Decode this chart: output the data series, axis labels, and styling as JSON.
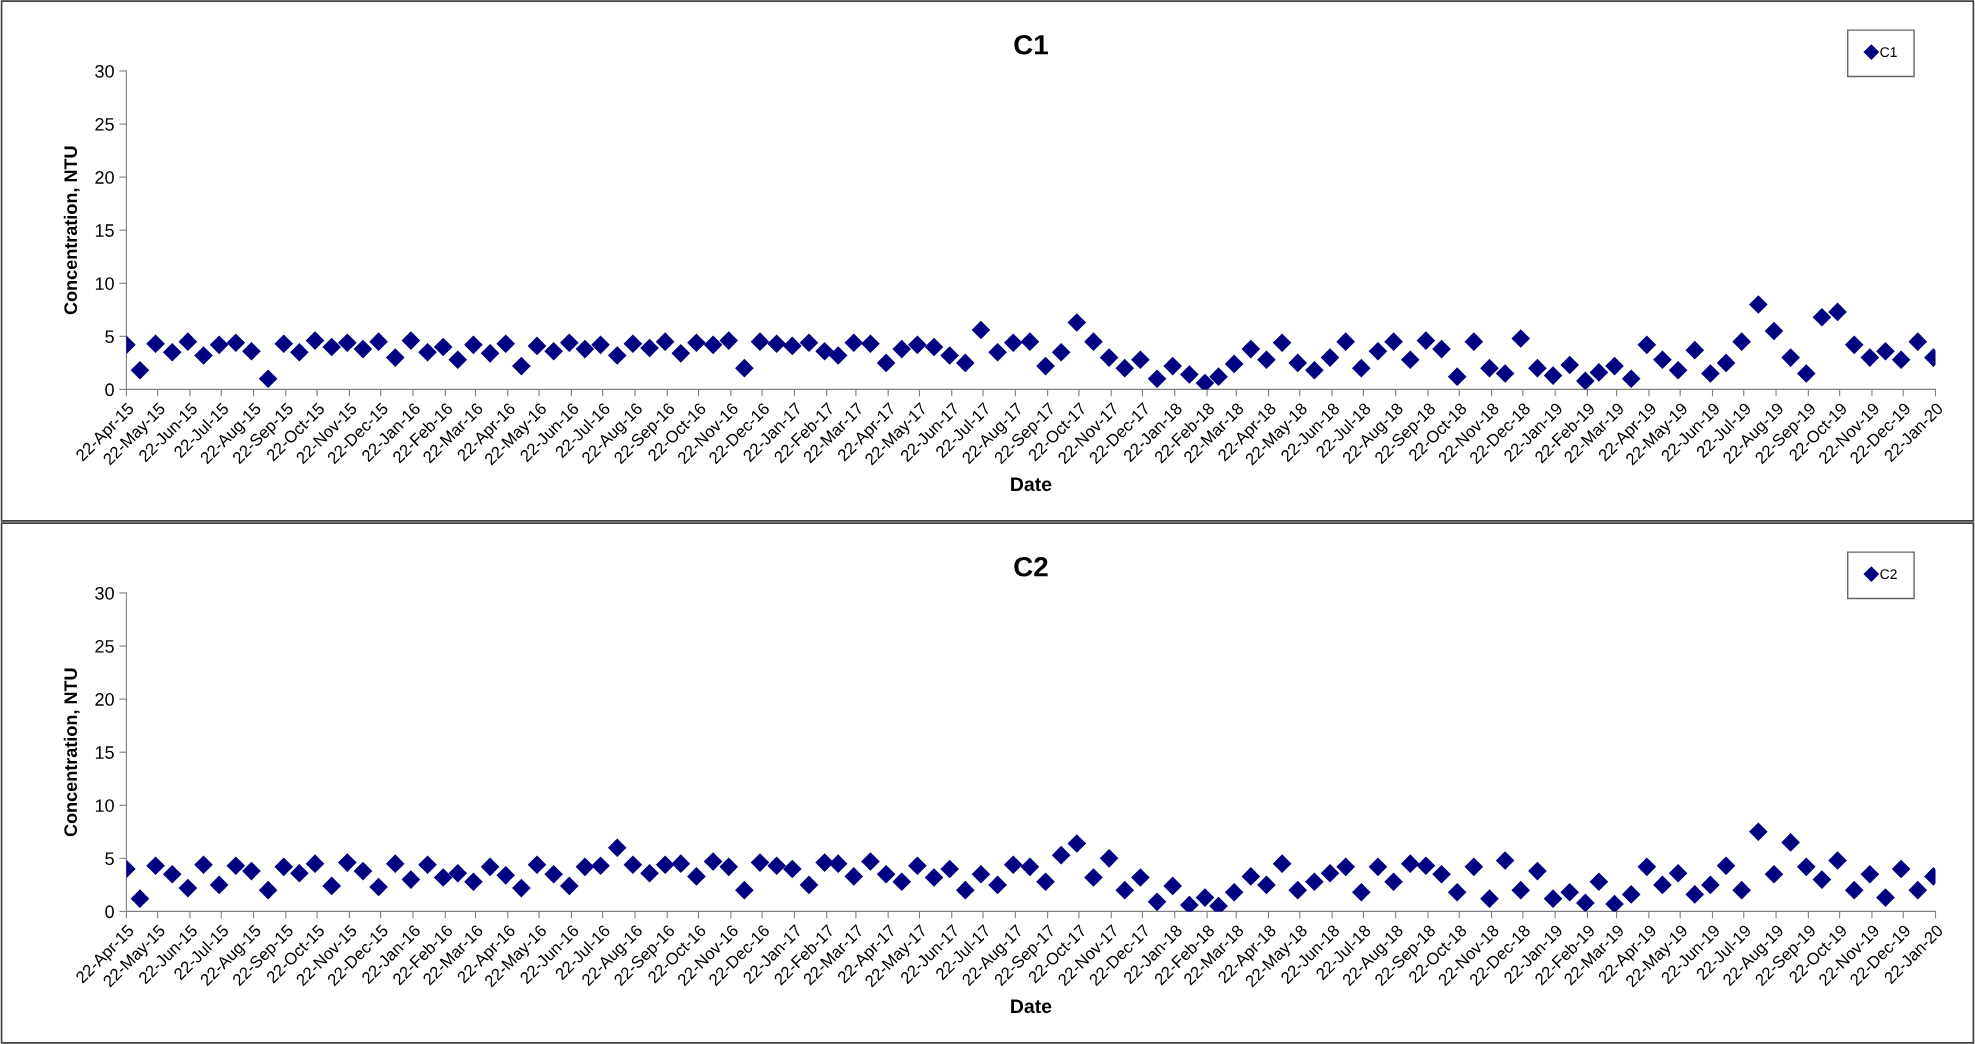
{
  "chart_data": [
    {
      "type": "scatter",
      "title": "C1",
      "xlabel": "Date",
      "ylabel": "Concentration, NTU",
      "marker": "diamond",
      "legend": "top right",
      "grid": false,
      "ylim": [
        0,
        30
      ],
      "yticks": [
        0,
        5,
        10,
        15,
        20,
        25,
        30
      ],
      "xlim": [
        "2015-04-22",
        "2020-01-22"
      ],
      "xticks": [
        {
          "value": "2015-04-22",
          "label": "22-Apr-15"
        },
        {
          "value": "2015-05-22",
          "label": "22-May-15"
        },
        {
          "value": "2015-06-22",
          "label": "22-Jun-15"
        },
        {
          "value": "2015-07-22",
          "label": "22-Jul-15"
        },
        {
          "value": "2015-08-22",
          "label": "22-Aug-15"
        },
        {
          "value": "2015-09-22",
          "label": "22-Sep-15"
        },
        {
          "value": "2015-10-22",
          "label": "22-Oct-15"
        },
        {
          "value": "2015-11-22",
          "label": "22-Nov-15"
        },
        {
          "value": "2015-12-22",
          "label": "22-Dec-15"
        },
        {
          "value": "2016-01-22",
          "label": "22-Jan-16"
        },
        {
          "value": "2016-02-22",
          "label": "22-Feb-16"
        },
        {
          "value": "2016-03-22",
          "label": "22-Mar-16"
        },
        {
          "value": "2016-04-22",
          "label": "22-Apr-16"
        },
        {
          "value": "2016-05-22",
          "label": "22-May-16"
        },
        {
          "value": "2016-06-22",
          "label": "22-Jun-16"
        },
        {
          "value": "2016-07-22",
          "label": "22-Jul-16"
        },
        {
          "value": "2016-08-22",
          "label": "22-Aug-16"
        },
        {
          "value": "2016-09-22",
          "label": "22-Sep-16"
        },
        {
          "value": "2016-10-22",
          "label": "22-Oct-16"
        },
        {
          "value": "2016-11-22",
          "label": "22-Nov-16"
        },
        {
          "value": "2016-12-22",
          "label": "22-Dec-16"
        },
        {
          "value": "2017-01-22",
          "label": "22-Jan-17"
        },
        {
          "value": "2017-02-22",
          "label": "22-Feb-17"
        },
        {
          "value": "2017-03-22",
          "label": "22-Mar-17"
        },
        {
          "value": "2017-04-22",
          "label": "22-Apr-17"
        },
        {
          "value": "2017-05-22",
          "label": "22-May-17"
        },
        {
          "value": "2017-06-22",
          "label": "22-Jun-17"
        },
        {
          "value": "2017-07-22",
          "label": "22-Jul-17"
        },
        {
          "value": "2017-08-22",
          "label": "22-Aug-17"
        },
        {
          "value": "2017-09-22",
          "label": "22-Sep-17"
        },
        {
          "value": "2017-10-22",
          "label": "22-Oct-17"
        },
        {
          "value": "2017-11-22",
          "label": "22-Nov-17"
        },
        {
          "value": "2017-12-22",
          "label": "22-Dec-17"
        },
        {
          "value": "2018-01-22",
          "label": "22-Jan-18"
        },
        {
          "value": "2018-02-22",
          "label": "22-Feb-18"
        },
        {
          "value": "2018-03-22",
          "label": "22-Mar-18"
        },
        {
          "value": "2018-04-22",
          "label": "22-Apr-18"
        },
        {
          "value": "2018-05-22",
          "label": "22-May-18"
        },
        {
          "value": "2018-06-22",
          "label": "22-Jun-18"
        },
        {
          "value": "2018-07-22",
          "label": "22-Jul-18"
        },
        {
          "value": "2018-08-22",
          "label": "22-Aug-18"
        },
        {
          "value": "2018-09-22",
          "label": "22-Sep-18"
        },
        {
          "value": "2018-10-22",
          "label": "22-Oct-18"
        },
        {
          "value": "2018-11-22",
          "label": "22-Nov-18"
        },
        {
          "value": "2018-12-22",
          "label": "22-Dec-18"
        },
        {
          "value": "2019-01-22",
          "label": "22-Jan-19"
        },
        {
          "value": "2019-02-22",
          "label": "22-Feb-19"
        },
        {
          "value": "2019-03-22",
          "label": "22-Mar-19"
        },
        {
          "value": "2019-04-22",
          "label": "22-Apr-19"
        },
        {
          "value": "2019-05-22",
          "label": "22-May-19"
        },
        {
          "value": "2019-06-22",
          "label": "22-Jun-19"
        },
        {
          "value": "2019-07-22",
          "label": "22-Jul-19"
        },
        {
          "value": "2019-08-22",
          "label": "22-Aug-19"
        },
        {
          "value": "2019-09-22",
          "label": "22-Sep-19"
        },
        {
          "value": "2019-10-22",
          "label": "22-Oct-19"
        },
        {
          "value": "2019-11-22",
          "label": "22-Nov-19"
        },
        {
          "value": "2019-12-22",
          "label": "22-Dec-19"
        },
        {
          "value": "2020-01-22",
          "label": "22-Jan-20"
        }
      ],
      "series": [
        {
          "name": "C1",
          "color": "#000080",
          "x": [
            "2015-04-22",
            "2015-05-05",
            "2015-05-20",
            "2015-06-05",
            "2015-06-20",
            "2015-07-05",
            "2015-07-20",
            "2015-08-05",
            "2015-08-20",
            "2015-09-05",
            "2015-09-20",
            "2015-10-05",
            "2015-10-20",
            "2015-11-05",
            "2015-11-20",
            "2015-12-05",
            "2015-12-20",
            "2016-01-05",
            "2016-01-20",
            "2016-02-05",
            "2016-02-20",
            "2016-03-05",
            "2016-03-20",
            "2016-04-05",
            "2016-04-20",
            "2016-05-05",
            "2016-05-20",
            "2016-06-05",
            "2016-06-20",
            "2016-07-05",
            "2016-07-20",
            "2016-08-05",
            "2016-08-20",
            "2016-09-05",
            "2016-09-20",
            "2016-10-05",
            "2016-10-20",
            "2016-11-05",
            "2016-11-20",
            "2016-12-05",
            "2016-12-20",
            "2017-01-05",
            "2017-01-20",
            "2017-02-05",
            "2017-02-20",
            "2017-03-05",
            "2017-03-20",
            "2017-04-05",
            "2017-04-20",
            "2017-05-05",
            "2017-05-20",
            "2017-06-05",
            "2017-06-20",
            "2017-07-05",
            "2017-07-20",
            "2017-08-05",
            "2017-08-20",
            "2017-09-05",
            "2017-09-20",
            "2017-10-05",
            "2017-10-20",
            "2017-11-05",
            "2017-11-20",
            "2017-12-05",
            "2017-12-20",
            "2018-01-05",
            "2018-01-20",
            "2018-02-05",
            "2018-02-20",
            "2018-03-05",
            "2018-03-20",
            "2018-04-05",
            "2018-04-20",
            "2018-05-05",
            "2018-05-20",
            "2018-06-05",
            "2018-06-20",
            "2018-07-05",
            "2018-07-20",
            "2018-08-05",
            "2018-08-20",
            "2018-09-05",
            "2018-09-20",
            "2018-10-05",
            "2018-10-20",
            "2018-11-05",
            "2018-11-20",
            "2018-12-05",
            "2018-12-20",
            "2019-01-05",
            "2019-01-20",
            "2019-02-05",
            "2019-02-20",
            "2019-03-05",
            "2019-03-20",
            "2019-04-05",
            "2019-04-20",
            "2019-05-05",
            "2019-05-20",
            "2019-06-05",
            "2019-06-20",
            "2019-07-05",
            "2019-07-20",
            "2019-08-05",
            "2019-08-20",
            "2019-09-05",
            "2019-09-20",
            "2019-10-05",
            "2019-10-20",
            "2019-11-05",
            "2019-11-20",
            "2019-12-05",
            "2019-12-20",
            "2020-01-05",
            "2020-01-20"
          ],
          "values": [
            4.2,
            1.8,
            4.3,
            3.5,
            4.5,
            3.2,
            4.2,
            4.4,
            3.6,
            1.0,
            4.3,
            3.5,
            4.6,
            4.0,
            4.4,
            3.8,
            4.5,
            3.0,
            4.6,
            3.5,
            4.0,
            2.8,
            4.2,
            3.4,
            4.3,
            2.2,
            4.1,
            3.6,
            4.4,
            3.8,
            4.2,
            3.2,
            4.3,
            3.9,
            4.5,
            3.4,
            4.4,
            4.2,
            4.6,
            2.0,
            4.5,
            4.3,
            4.1,
            4.4,
            3.6,
            3.2,
            4.4,
            4.3,
            2.5,
            3.8,
            4.2,
            4.0,
            3.2,
            2.5,
            5.6,
            3.5,
            4.4,
            4.5,
            2.2,
            3.5,
            6.3,
            4.5,
            3.0,
            2.0,
            2.8,
            1.0,
            2.2,
            1.4,
            0.6,
            1.2,
            2.4,
            3.8,
            2.8,
            4.4,
            2.5,
            1.8,
            3.0,
            4.5,
            2.0,
            3.6,
            4.5,
            2.8,
            4.6,
            3.8,
            1.2,
            4.5,
            2.0,
            1.5,
            4.8,
            2.0,
            1.3,
            2.3,
            0.8,
            1.6,
            2.2,
            1.0,
            4.2,
            2.8,
            1.8,
            3.7,
            1.5,
            2.5,
            4.5,
            8.0,
            5.5,
            3.0,
            1.5,
            6.8,
            7.3,
            4.2,
            3.0,
            3.6,
            2.8,
            4.5,
            3.0
          ]
        }
      ]
    },
    {
      "type": "scatter",
      "title": "C2",
      "xlabel": "Date",
      "ylabel": "Concentration, NTU",
      "marker": "diamond",
      "legend": "top right",
      "grid": false,
      "ylim": [
        0,
        30
      ],
      "yticks": [
        0,
        5,
        10,
        15,
        20,
        25,
        30
      ],
      "xlim": [
        "2015-04-22",
        "2020-01-22"
      ],
      "xticks": [
        {
          "value": "2015-04-22",
          "label": "22-Apr-15"
        },
        {
          "value": "2015-05-22",
          "label": "22-May-15"
        },
        {
          "value": "2015-06-22",
          "label": "22-Jun-15"
        },
        {
          "value": "2015-07-22",
          "label": "22-Jul-15"
        },
        {
          "value": "2015-08-22",
          "label": "22-Aug-15"
        },
        {
          "value": "2015-09-22",
          "label": "22-Sep-15"
        },
        {
          "value": "2015-10-22",
          "label": "22-Oct-15"
        },
        {
          "value": "2015-11-22",
          "label": "22-Nov-15"
        },
        {
          "value": "2015-12-22",
          "label": "22-Dec-15"
        },
        {
          "value": "2016-01-22",
          "label": "22-Jan-16"
        },
        {
          "value": "2016-02-22",
          "label": "22-Feb-16"
        },
        {
          "value": "2016-03-22",
          "label": "22-Mar-16"
        },
        {
          "value": "2016-04-22",
          "label": "22-Apr-16"
        },
        {
          "value": "2016-05-22",
          "label": "22-May-16"
        },
        {
          "value": "2016-06-22",
          "label": "22-Jun-16"
        },
        {
          "value": "2016-07-22",
          "label": "22-Jul-16"
        },
        {
          "value": "2016-08-22",
          "label": "22-Aug-16"
        },
        {
          "value": "2016-09-22",
          "label": "22-Sep-16"
        },
        {
          "value": "2016-10-22",
          "label": "22-Oct-16"
        },
        {
          "value": "2016-11-22",
          "label": "22-Nov-16"
        },
        {
          "value": "2016-12-22",
          "label": "22-Dec-16"
        },
        {
          "value": "2017-01-22",
          "label": "22-Jan-17"
        },
        {
          "value": "2017-02-22",
          "label": "22-Feb-17"
        },
        {
          "value": "2017-03-22",
          "label": "22-Mar-17"
        },
        {
          "value": "2017-04-22",
          "label": "22-Apr-17"
        },
        {
          "value": "2017-05-22",
          "label": "22-May-17"
        },
        {
          "value": "2017-06-22",
          "label": "22-Jun-17"
        },
        {
          "value": "2017-07-22",
          "label": "22-Jul-17"
        },
        {
          "value": "2017-08-22",
          "label": "22-Aug-17"
        },
        {
          "value": "2017-09-22",
          "label": "22-Sep-17"
        },
        {
          "value": "2017-10-22",
          "label": "22-Oct-17"
        },
        {
          "value": "2017-11-22",
          "label": "22-Nov-17"
        },
        {
          "value": "2017-12-22",
          "label": "22-Dec-17"
        },
        {
          "value": "2018-01-22",
          "label": "22-Jan-18"
        },
        {
          "value": "2018-02-22",
          "label": "22-Feb-18"
        },
        {
          "value": "2018-03-22",
          "label": "22-Mar-18"
        },
        {
          "value": "2018-04-22",
          "label": "22-Apr-18"
        },
        {
          "value": "2018-05-22",
          "label": "22-May-18"
        },
        {
          "value": "2018-06-22",
          "label": "22-Jun-18"
        },
        {
          "value": "2018-07-22",
          "label": "22-Jul-18"
        },
        {
          "value": "2018-08-22",
          "label": "22-Aug-18"
        },
        {
          "value": "2018-09-22",
          "label": "22-Sep-18"
        },
        {
          "value": "2018-10-22",
          "label": "22-Oct-18"
        },
        {
          "value": "2018-11-22",
          "label": "22-Nov-18"
        },
        {
          "value": "2018-12-22",
          "label": "22-Dec-18"
        },
        {
          "value": "2019-01-22",
          "label": "22-Jan-19"
        },
        {
          "value": "2019-02-22",
          "label": "22-Feb-19"
        },
        {
          "value": "2019-03-22",
          "label": "22-Mar-19"
        },
        {
          "value": "2019-04-22",
          "label": "22-Apr-19"
        },
        {
          "value": "2019-05-22",
          "label": "22-May-19"
        },
        {
          "value": "2019-06-22",
          "label": "22-Jun-19"
        },
        {
          "value": "2019-07-22",
          "label": "22-Jul-19"
        },
        {
          "value": "2019-08-22",
          "label": "22-Aug-19"
        },
        {
          "value": "2019-09-22",
          "label": "22-Sep-19"
        },
        {
          "value": "2019-10-22",
          "label": "22-Oct-19"
        },
        {
          "value": "2019-11-22",
          "label": "22-Nov-19"
        },
        {
          "value": "2019-12-22",
          "label": "22-Dec-19"
        },
        {
          "value": "2020-01-22",
          "label": "22-Jan-20"
        }
      ],
      "series": [
        {
          "name": "C2",
          "color": "#000080",
          "x": [
            "2015-04-22",
            "2015-05-05",
            "2015-05-20",
            "2015-06-05",
            "2015-06-20",
            "2015-07-05",
            "2015-07-20",
            "2015-08-05",
            "2015-08-20",
            "2015-09-05",
            "2015-09-20",
            "2015-10-05",
            "2015-10-20",
            "2015-11-05",
            "2015-11-20",
            "2015-12-05",
            "2015-12-20",
            "2016-01-05",
            "2016-01-20",
            "2016-02-05",
            "2016-02-20",
            "2016-03-05",
            "2016-03-20",
            "2016-04-05",
            "2016-04-20",
            "2016-05-05",
            "2016-05-20",
            "2016-06-05",
            "2016-06-20",
            "2016-07-05",
            "2016-07-20",
            "2016-08-05",
            "2016-08-20",
            "2016-09-05",
            "2016-09-20",
            "2016-10-05",
            "2016-10-20",
            "2016-11-05",
            "2016-11-20",
            "2016-12-05",
            "2016-12-20",
            "2017-01-05",
            "2017-01-20",
            "2017-02-05",
            "2017-02-20",
            "2017-03-05",
            "2017-03-20",
            "2017-04-05",
            "2017-04-20",
            "2017-05-05",
            "2017-05-20",
            "2017-06-05",
            "2017-06-20",
            "2017-07-05",
            "2017-07-20",
            "2017-08-05",
            "2017-08-20",
            "2017-09-05",
            "2017-09-20",
            "2017-10-05",
            "2017-10-20",
            "2017-11-05",
            "2017-11-20",
            "2017-12-05",
            "2017-12-20",
            "2018-01-05",
            "2018-01-20",
            "2018-02-05",
            "2018-02-20",
            "2018-03-05",
            "2018-03-20",
            "2018-04-05",
            "2018-04-20",
            "2018-05-05",
            "2018-05-20",
            "2018-06-05",
            "2018-06-20",
            "2018-07-05",
            "2018-07-20",
            "2018-08-05",
            "2018-08-20",
            "2018-09-05",
            "2018-09-20",
            "2018-10-05",
            "2018-10-20",
            "2018-11-05",
            "2018-11-20",
            "2018-12-05",
            "2018-12-20",
            "2019-01-05",
            "2019-01-20",
            "2019-02-05",
            "2019-02-20",
            "2019-03-05",
            "2019-03-20",
            "2019-04-05",
            "2019-04-20",
            "2019-05-05",
            "2019-05-20",
            "2019-06-05",
            "2019-06-20",
            "2019-07-05",
            "2019-07-20",
            "2019-08-05",
            "2019-08-20",
            "2019-09-05",
            "2019-09-20",
            "2019-10-05",
            "2019-10-20",
            "2019-11-05",
            "2019-11-20",
            "2019-12-05",
            "2019-12-20",
            "2020-01-05",
            "2020-01-20"
          ],
          "values": [
            4.0,
            1.2,
            4.3,
            3.5,
            2.2,
            4.4,
            2.5,
            4.3,
            3.8,
            2.0,
            4.2,
            3.6,
            4.5,
            2.4,
            4.6,
            3.8,
            2.3,
            4.5,
            3.0,
            4.4,
            3.2,
            3.6,
            2.8,
            4.2,
            3.4,
            2.2,
            4.4,
            3.5,
            2.4,
            4.2,
            4.3,
            6.0,
            4.4,
            3.6,
            4.4,
            4.5,
            3.3,
            4.7,
            4.2,
            2.0,
            4.6,
            4.3,
            4.0,
            2.5,
            4.6,
            4.5,
            3.3,
            4.7,
            3.5,
            2.8,
            4.3,
            3.2,
            4.0,
            2.0,
            3.5,
            2.5,
            4.4,
            4.2,
            2.8,
            5.3,
            6.4,
            3.2,
            5.0,
            2.0,
            3.2,
            0.9,
            2.4,
            0.6,
            1.3,
            0.5,
            1.8,
            3.3,
            2.5,
            4.5,
            2.0,
            2.8,
            3.6,
            4.2,
            1.8,
            4.2,
            2.8,
            4.5,
            4.3,
            3.5,
            1.8,
            4.2,
            1.2,
            4.8,
            2.0,
            3.8,
            1.2,
            1.8,
            0.8,
            2.8,
            0.7,
            1.6,
            4.2,
            2.5,
            3.6,
            1.6,
            2.5,
            4.3,
            2.0,
            7.5,
            3.5,
            6.5,
            4.2,
            3.0,
            4.8,
            2.0,
            3.5,
            1.3,
            4.0,
            2.0,
            3.3
          ]
        }
      ]
    }
  ]
}
